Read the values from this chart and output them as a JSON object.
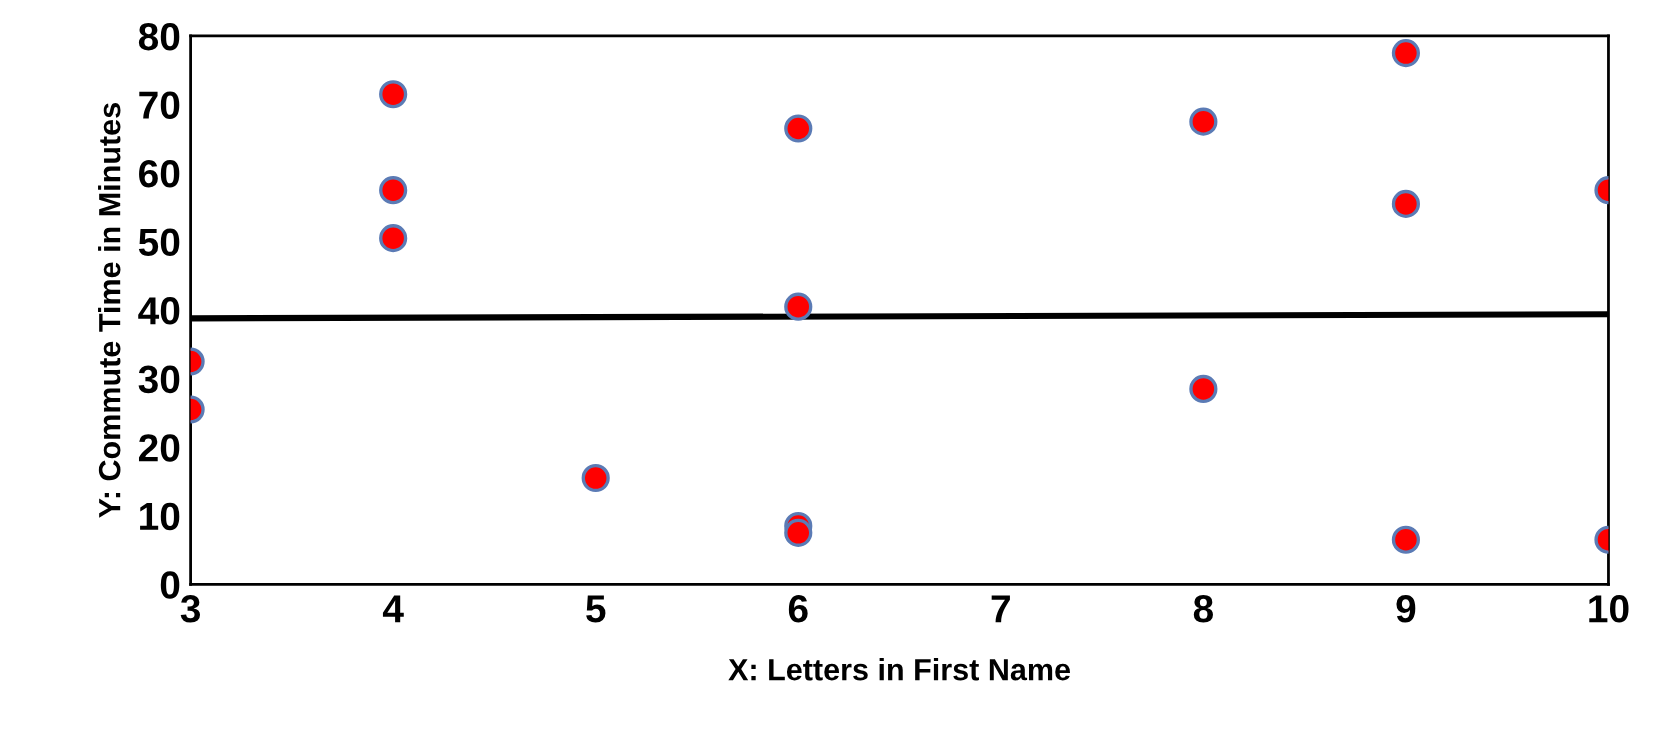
{
  "chart_data": {
    "type": "scatter",
    "xlabel": "X: Letters in First Name",
    "ylabel": "Y: Commute Time in Minutes",
    "series": [
      {
        "marker": "circle",
        "color": "#ff0000",
        "x": [
          3,
          3,
          4,
          4,
          4,
          5,
          6,
          6,
          6,
          6,
          8,
          8,
          9,
          9,
          9,
          10,
          10
        ],
        "values": [
          32.5,
          25.5,
          71.5,
          57.5,
          50.5,
          15.5,
          66.5,
          40.5,
          8.5,
          7.5,
          67.5,
          28.5,
          77.5,
          55.5,
          6.5,
          57.5,
          6.5
        ]
      },
      {
        "type": "line",
        "color": "#000000",
        "x": [
          3,
          10
        ],
        "values": [
          38.8,
          39.4
        ]
      }
    ],
    "xlim": [
      3,
      10
    ],
    "xticks": [
      3,
      4,
      5,
      6,
      7,
      8,
      9,
      10
    ],
    "ylim": [
      0,
      80
    ],
    "yticks": [
      0,
      10,
      20,
      30,
      40,
      50,
      60,
      70,
      80
    ],
    "grid": false,
    "legend": false
  }
}
